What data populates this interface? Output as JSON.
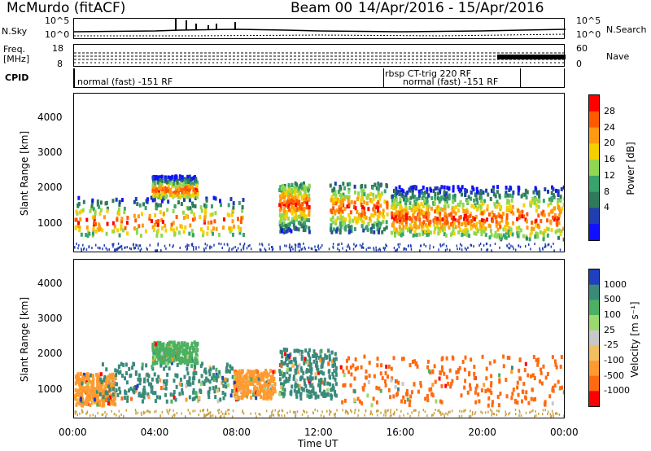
{
  "header": {
    "station": "McMurdo (fitACF)",
    "beam": "Beam 00",
    "date_range": "14/Apr/2016 - 15/Apr/2016"
  },
  "aux_panels": {
    "nsky_label": "N.Sky",
    "nsky_ticks": [
      "10^5",
      "10^0"
    ],
    "nsearch_label": "N.Search",
    "nsearch_ticks": [
      "10^5",
      "10^0"
    ],
    "freq_label_1": "Freq.",
    "freq_label_2": "[MHz]",
    "freq_ticks": [
      "18",
      "8"
    ],
    "nave_label": "Nave",
    "nave_ticks": [
      "60",
      "0"
    ],
    "cpid_label": "CPID",
    "cpid_entries": [
      "normal (fast) -151 RF",
      "rbsp CT-trig 220 RF",
      "normal (fast) -151 RF"
    ]
  },
  "chart_data": [
    {
      "type": "heatmap",
      "name": "power",
      "ylabel": "Slant Range [km]",
      "xlabel": "Time UT",
      "xticks": [
        "00:00",
        "04:00",
        "08:00",
        "12:00",
        "16:00",
        "20:00",
        "00:00"
      ],
      "yticks": [
        "1000",
        "2000",
        "3000",
        "4000"
      ],
      "ylim": [
        200,
        4700
      ],
      "xlim_hours": [
        0,
        24
      ],
      "colorbar_label": "Power [dB]",
      "colorbar_ticks": [
        "28",
        "24",
        "20",
        "16",
        "12",
        "8",
        "4"
      ],
      "colorbar_colors": [
        "#ff0000",
        "#ff5a00",
        "#ff9a10",
        "#f5d000",
        "#8fd84f",
        "#3aa26b",
        "#2f7a5a",
        "#1f3fb0",
        "#1010ff"
      ],
      "echo_blocks": [
        {
          "t0": 0.0,
          "t1": 8.3,
          "r0": 700,
          "r1": 1800,
          "core": 1100
        },
        {
          "t0": 3.8,
          "t1": 6.0,
          "r0": 1800,
          "r1": 2400,
          "core": 2000
        },
        {
          "t0": 10.0,
          "t1": 11.5,
          "r0": 800,
          "r1": 2200,
          "core": 1600
        },
        {
          "t0": 12.5,
          "t1": 15.3,
          "r0": 800,
          "r1": 2200,
          "core": 1500
        },
        {
          "t0": 15.5,
          "t1": 17.5,
          "r0": 700,
          "r1": 2100,
          "core": 1200
        },
        {
          "t0": 17.5,
          "t1": 20.2,
          "r0": 700,
          "r1": 2100,
          "core": 1200
        },
        {
          "t0": 20.2,
          "t1": 24.0,
          "r0": 600,
          "r1": 2100,
          "core": 1200
        }
      ]
    },
    {
      "type": "heatmap",
      "name": "velocity",
      "ylabel": "Slant Range [km]",
      "xlabel": "Time UT",
      "xticks": [
        "00:00",
        "04:00",
        "08:00",
        "12:00",
        "16:00",
        "20:00",
        "00:00"
      ],
      "yticks": [
        "1000",
        "2000",
        "3000",
        "4000"
      ],
      "ylim": [
        200,
        4700
      ],
      "xlim_hours": [
        0,
        24
      ],
      "colorbar_label": "Velocity [m s⁻¹]",
      "colorbar_ticks": [
        "1000",
        "500",
        "100",
        "25",
        "-25",
        "-100",
        "-500",
        "-1000"
      ],
      "colorbar_colors": [
        "#2040c0",
        "#3a8a7a",
        "#4bb061",
        "#9ad870",
        "#c8c8c8",
        "#f0c060",
        "#ff9a30",
        "#ff6a10",
        "#ff0000"
      ],
      "echo_blocks": [
        {
          "t0": 0.0,
          "t1": 2.0,
          "r0": 600,
          "r1": 1500,
          "color": "#ff9a30"
        },
        {
          "t0": 1.2,
          "t1": 8.0,
          "r0": 700,
          "r1": 1800,
          "color": "#3a8a7a"
        },
        {
          "t0": 3.8,
          "t1": 6.0,
          "r0": 1800,
          "r1": 2400,
          "color": "#4bb061"
        },
        {
          "t0": 7.8,
          "t1": 9.8,
          "r0": 800,
          "r1": 1600,
          "color": "#ff9a30"
        },
        {
          "t0": 10.0,
          "t1": 12.8,
          "r0": 800,
          "r1": 2200,
          "color": "#3a8a7a"
        },
        {
          "t0": 13.0,
          "t1": 24.0,
          "r0": 600,
          "r1": 2000,
          "color": "#ff6a10"
        }
      ]
    }
  ]
}
